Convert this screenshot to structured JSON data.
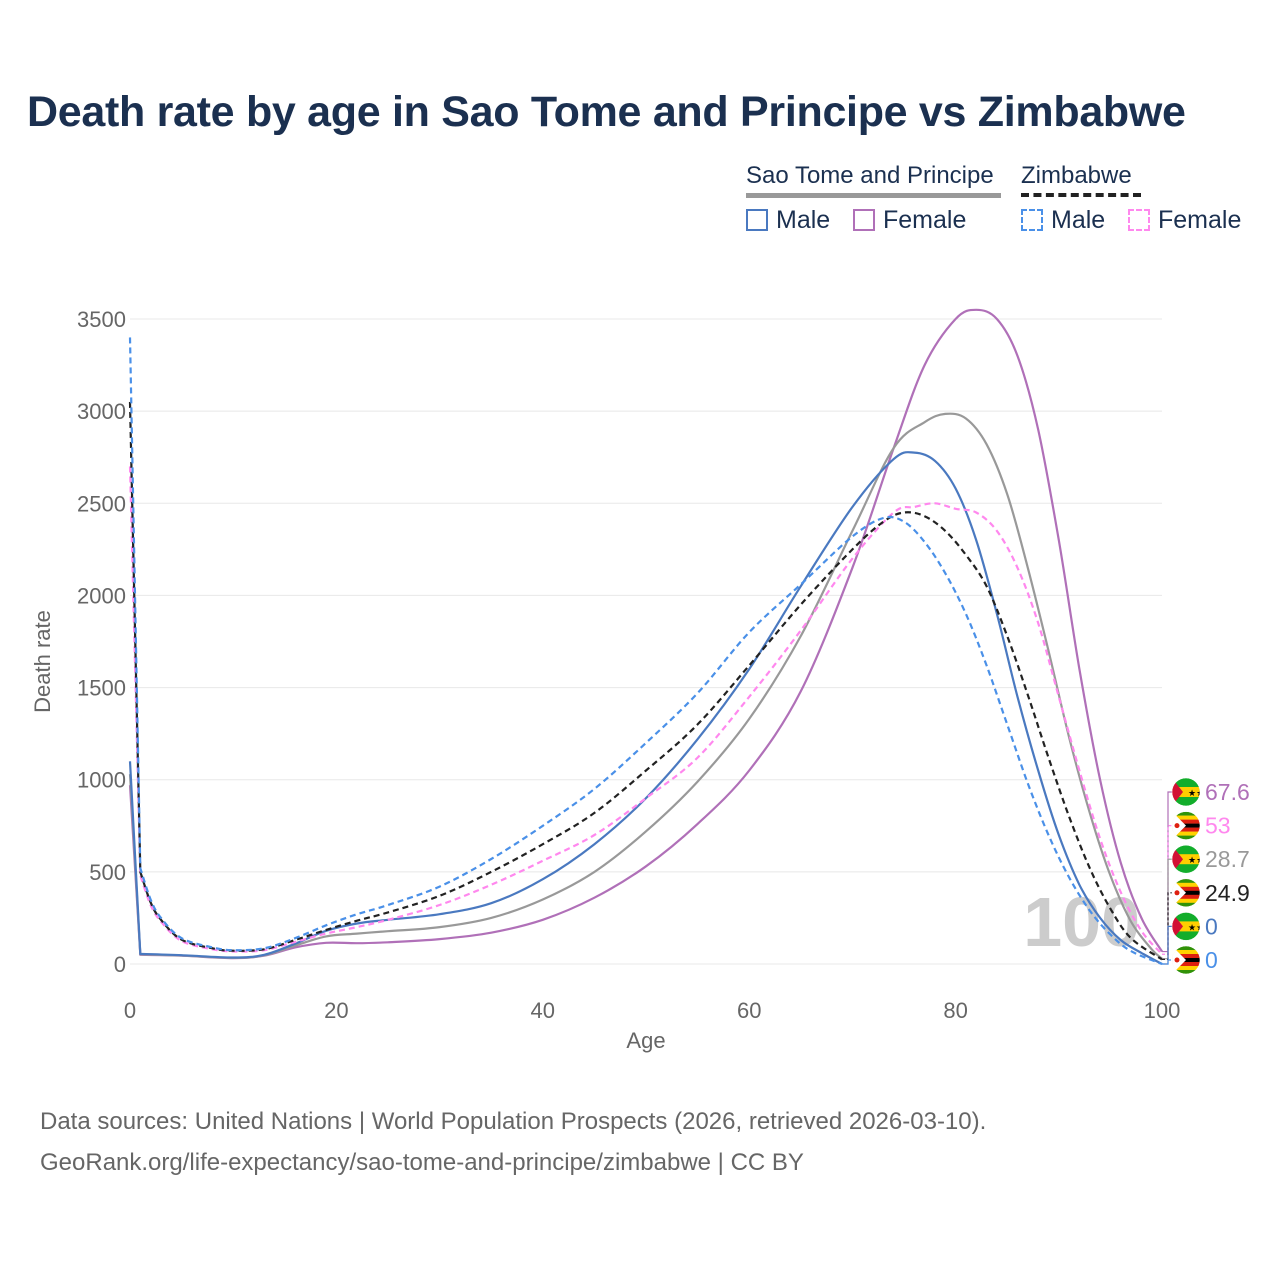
{
  "title": "Death rate by age in Sao Tome and Principe vs Zimbabwe",
  "legend": {
    "groups": [
      {
        "name": "Sao Tome and Principe",
        "line_style": "solid",
        "underline_color": "#999999",
        "items": [
          {
            "label": "Male",
            "color": "#4a79c0"
          },
          {
            "label": "Female",
            "color": "#b070b8"
          }
        ]
      },
      {
        "name": "Zimbabwe",
        "line_style": "dashed",
        "underline_color": "#222222",
        "items": [
          {
            "label": "Male",
            "color": "#4a90e8"
          },
          {
            "label": "Female",
            "color": "#ff88ee"
          }
        ]
      }
    ]
  },
  "chart_data": {
    "type": "line",
    "xlabel": "Age",
    "ylabel": "Death rate",
    "xlim": [
      0,
      100
    ],
    "ylim": [
      0,
      3500
    ],
    "xticks": [
      0,
      20,
      40,
      60,
      80,
      100
    ],
    "yticks": [
      0,
      500,
      1000,
      1500,
      2000,
      2500,
      3000,
      3500
    ],
    "grid": true,
    "watermark": "100",
    "series": [
      {
        "name": "Sao Tome and Principe Male",
        "country": "Sao Tome and Principe",
        "sex": "Male",
        "dash": false,
        "color": "#4a79c0",
        "end_value": "0",
        "flag": "stp",
        "points": [
          [
            0,
            1100
          ],
          [
            1,
            55
          ],
          [
            5,
            48
          ],
          [
            10,
            35
          ],
          [
            13,
            50
          ],
          [
            16,
            110
          ],
          [
            19,
            180
          ],
          [
            22,
            220
          ],
          [
            25,
            240
          ],
          [
            30,
            270
          ],
          [
            35,
            330
          ],
          [
            40,
            460
          ],
          [
            45,
            650
          ],
          [
            50,
            900
          ],
          [
            55,
            1220
          ],
          [
            60,
            1600
          ],
          [
            65,
            2050
          ],
          [
            70,
            2480
          ],
          [
            74,
            2740
          ],
          [
            76,
            2775
          ],
          [
            78,
            2730
          ],
          [
            80,
            2580
          ],
          [
            82,
            2300
          ],
          [
            84,
            1900
          ],
          [
            86,
            1450
          ],
          [
            88,
            1050
          ],
          [
            90,
            700
          ],
          [
            92,
            430
          ],
          [
            94,
            250
          ],
          [
            96,
            130
          ],
          [
            98,
            60
          ],
          [
            100,
            0
          ]
        ]
      },
      {
        "name": "Sao Tome and Principe Female",
        "country": "Sao Tome and Principe",
        "sex": "Female",
        "dash": false,
        "color": "#b070b8",
        "end_value": "67.6",
        "flag": "stp",
        "points": [
          [
            0,
            970
          ],
          [
            1,
            50
          ],
          [
            5,
            45
          ],
          [
            10,
            32
          ],
          [
            13,
            45
          ],
          [
            16,
            90
          ],
          [
            19,
            115
          ],
          [
            22,
            113
          ],
          [
            25,
            118
          ],
          [
            30,
            135
          ],
          [
            35,
            170
          ],
          [
            40,
            240
          ],
          [
            45,
            360
          ],
          [
            50,
            530
          ],
          [
            55,
            760
          ],
          [
            60,
            1050
          ],
          [
            65,
            1480
          ],
          [
            70,
            2150
          ],
          [
            74,
            2800
          ],
          [
            77,
            3250
          ],
          [
            80,
            3500
          ],
          [
            82,
            3550
          ],
          [
            84,
            3500
          ],
          [
            86,
            3300
          ],
          [
            88,
            2900
          ],
          [
            90,
            2300
          ],
          [
            92,
            1600
          ],
          [
            94,
            1000
          ],
          [
            96,
            550
          ],
          [
            98,
            250
          ],
          [
            100,
            67.6
          ]
        ]
      },
      {
        "name": "Sao Tome and Principe Total",
        "country": "Sao Tome and Principe",
        "sex": "Total",
        "dash": false,
        "color": "#999999",
        "end_value": "28.7",
        "flag": "stp",
        "points": [
          [
            0,
            1030
          ],
          [
            1,
            52
          ],
          [
            5,
            46
          ],
          [
            10,
            33
          ],
          [
            13,
            47
          ],
          [
            16,
            100
          ],
          [
            19,
            150
          ],
          [
            22,
            165
          ],
          [
            25,
            178
          ],
          [
            30,
            200
          ],
          [
            35,
            250
          ],
          [
            40,
            350
          ],
          [
            45,
            500
          ],
          [
            50,
            720
          ],
          [
            55,
            990
          ],
          [
            60,
            1330
          ],
          [
            65,
            1780
          ],
          [
            70,
            2350
          ],
          [
            74,
            2800
          ],
          [
            77,
            2940
          ],
          [
            79,
            2985
          ],
          [
            81,
            2960
          ],
          [
            83,
            2820
          ],
          [
            85,
            2550
          ],
          [
            87,
            2150
          ],
          [
            89,
            1700
          ],
          [
            91,
            1230
          ],
          [
            93,
            820
          ],
          [
            95,
            480
          ],
          [
            97,
            230
          ],
          [
            99,
            80
          ],
          [
            100,
            28.7
          ]
        ]
      },
      {
        "name": "Zimbabwe Male",
        "country": "Zimbabwe",
        "sex": "Male",
        "dash": true,
        "color": "#4a90e8",
        "end_value": "0",
        "flag": "zwe",
        "points": [
          [
            0,
            3400
          ],
          [
            1,
            520
          ],
          [
            2,
            350
          ],
          [
            3,
            250
          ],
          [
            5,
            140
          ],
          [
            8,
            90
          ],
          [
            10,
            75
          ],
          [
            13,
            85
          ],
          [
            16,
            140
          ],
          [
            19,
            210
          ],
          [
            22,
            270
          ],
          [
            25,
            320
          ],
          [
            30,
            420
          ],
          [
            35,
            570
          ],
          [
            40,
            750
          ],
          [
            45,
            950
          ],
          [
            50,
            1200
          ],
          [
            55,
            1470
          ],
          [
            60,
            1800
          ],
          [
            65,
            2060
          ],
          [
            70,
            2320
          ],
          [
            73,
            2420
          ],
          [
            75,
            2400
          ],
          [
            77,
            2290
          ],
          [
            79,
            2120
          ],
          [
            81,
            1900
          ],
          [
            83,
            1620
          ],
          [
            85,
            1300
          ],
          [
            87,
            980
          ],
          [
            89,
            700
          ],
          [
            91,
            470
          ],
          [
            93,
            290
          ],
          [
            95,
            160
          ],
          [
            97,
            70
          ],
          [
            100,
            0
          ]
        ]
      },
      {
        "name": "Zimbabwe Female",
        "country": "Zimbabwe",
        "sex": "Female",
        "dash": true,
        "color": "#ff88ee",
        "end_value": "53",
        "flag": "zwe",
        "points": [
          [
            0,
            2700
          ],
          [
            1,
            480
          ],
          [
            2,
            320
          ],
          [
            3,
            230
          ],
          [
            5,
            125
          ],
          [
            8,
            80
          ],
          [
            10,
            68
          ],
          [
            13,
            75
          ],
          [
            16,
            120
          ],
          [
            19,
            165
          ],
          [
            22,
            200
          ],
          [
            25,
            240
          ],
          [
            30,
            320
          ],
          [
            35,
            430
          ],
          [
            40,
            560
          ],
          [
            45,
            700
          ],
          [
            50,
            900
          ],
          [
            55,
            1120
          ],
          [
            60,
            1450
          ],
          [
            65,
            1810
          ],
          [
            70,
            2200
          ],
          [
            74,
            2450
          ],
          [
            76,
            2480
          ],
          [
            78,
            2500
          ],
          [
            80,
            2470
          ],
          [
            82,
            2450
          ],
          [
            84,
            2350
          ],
          [
            86,
            2150
          ],
          [
            88,
            1850
          ],
          [
            90,
            1450
          ],
          [
            92,
            1050
          ],
          [
            94,
            680
          ],
          [
            96,
            390
          ],
          [
            98,
            180
          ],
          [
            100,
            53
          ]
        ]
      },
      {
        "name": "Zimbabwe Total",
        "country": "Zimbabwe",
        "sex": "Total",
        "dash": true,
        "color": "#222222",
        "end_value": "24.9",
        "flag": "zwe",
        "points": [
          [
            0,
            3050
          ],
          [
            1,
            500
          ],
          [
            2,
            335
          ],
          [
            3,
            240
          ],
          [
            5,
            132
          ],
          [
            8,
            85
          ],
          [
            10,
            72
          ],
          [
            13,
            80
          ],
          [
            16,
            130
          ],
          [
            19,
            185
          ],
          [
            22,
            235
          ],
          [
            25,
            280
          ],
          [
            30,
            370
          ],
          [
            35,
            500
          ],
          [
            40,
            650
          ],
          [
            45,
            820
          ],
          [
            50,
            1050
          ],
          [
            55,
            1300
          ],
          [
            60,
            1620
          ],
          [
            65,
            1950
          ],
          [
            70,
            2250
          ],
          [
            73,
            2400
          ],
          [
            75,
            2450
          ],
          [
            77,
            2430
          ],
          [
            79,
            2350
          ],
          [
            81,
            2220
          ],
          [
            83,
            2050
          ],
          [
            85,
            1780
          ],
          [
            87,
            1460
          ],
          [
            89,
            1120
          ],
          [
            91,
            800
          ],
          [
            93,
            520
          ],
          [
            95,
            300
          ],
          [
            97,
            140
          ],
          [
            100,
            24.9
          ]
        ]
      }
    ]
  },
  "footer": {
    "line1": "Data sources: United Nations | World Population Prospects (2026, retrieved 2026-03-10).",
    "line2": "GeoRank.org/life-expectancy/sao-tome-and-principe/zimbabwe | CC BY"
  }
}
